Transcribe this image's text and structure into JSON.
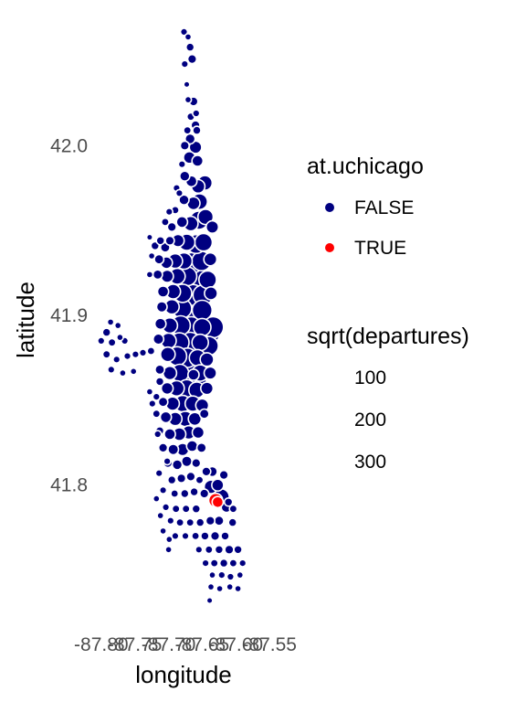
{
  "chart_data": {
    "type": "scatter",
    "title": "",
    "xlabel": "longitude",
    "ylabel": "latitude",
    "xlim": [
      -87.82,
      -87.53
    ],
    "ylim": [
      41.725,
      42.075
    ],
    "x_ticks": [
      -87.8,
      -87.75,
      -87.7,
      -87.65,
      -87.6,
      -87.55
    ],
    "x_tick_labels": [
      "-87.80",
      "-87.75",
      "-87.70",
      "-87.65",
      "-87.60",
      "-87.55"
    ],
    "y_ticks": [
      41.8,
      41.9,
      42.0
    ],
    "y_tick_labels": [
      "41.8",
      "41.9",
      "42.0"
    ],
    "grid": false,
    "legend_color": {
      "title": "at.uchicago",
      "entries": [
        {
          "label": "FALSE",
          "color": "#000080"
        },
        {
          "label": "TRUE",
          "color": "#ff0000"
        }
      ]
    },
    "legend_size": {
      "title": "sqrt(departures)",
      "entries": [
        {
          "label": "100",
          "value": 100
        },
        {
          "label": "200",
          "value": 200
        },
        {
          "label": "300",
          "value": 300
        }
      ]
    },
    "series": [
      {
        "label": "FALSE",
        "color": "#000080",
        "points": [
          [
            -87.677,
            42.067,
            60
          ],
          [
            -87.671,
            42.064,
            50
          ],
          [
            -87.668,
            42.058,
            80
          ],
          [
            -87.665,
            42.051,
            90
          ],
          [
            -87.676,
            42.048,
            60
          ],
          [
            -87.673,
            42.036,
            40
          ],
          [
            -87.663,
            42.026,
            90
          ],
          [
            -87.667,
            42.017,
            70
          ],
          [
            -87.66,
            42.012,
            90
          ],
          [
            -87.672,
            42.009,
            70
          ],
          [
            -87.668,
            42.004,
            110
          ],
          [
            -87.676,
            42.0,
            90
          ],
          [
            -87.669,
            41.993,
            140
          ],
          [
            -87.66,
            41.999,
            150
          ],
          [
            -87.657,
            41.991,
            130
          ],
          [
            -87.68,
            41.989,
            60
          ],
          [
            -87.676,
            41.982,
            110
          ],
          [
            -87.666,
            41.979,
            130
          ],
          [
            -87.656,
            41.976,
            170
          ],
          [
            -87.646,
            41.978,
            190
          ],
          [
            -87.688,
            41.975,
            60
          ],
          [
            -87.677,
            41.968,
            110
          ],
          [
            -87.663,
            41.966,
            160
          ],
          [
            -87.654,
            41.967,
            210
          ],
          [
            -87.69,
            41.962,
            70
          ],
          [
            -87.68,
            41.955,
            130
          ],
          [
            -87.667,
            41.954,
            190
          ],
          [
            -87.655,
            41.956,
            250
          ],
          [
            -87.645,
            41.958,
            200
          ],
          [
            -87.705,
            41.955,
            70
          ],
          [
            -87.695,
            41.952,
            90
          ],
          [
            -87.635,
            41.952,
            150
          ],
          [
            -87.698,
            41.944,
            90
          ],
          [
            -87.686,
            41.944,
            150
          ],
          [
            -87.673,
            41.943,
            220
          ],
          [
            -87.659,
            41.942,
            260
          ],
          [
            -87.648,
            41.943,
            240
          ],
          [
            -87.728,
            41.946,
            40
          ],
          [
            -87.72,
            41.941,
            80
          ],
          [
            -87.712,
            41.944,
            80
          ],
          [
            -87.705,
            41.94,
            100
          ],
          [
            -87.725,
            41.935,
            50
          ],
          [
            -87.714,
            41.933,
            100
          ],
          [
            -87.703,
            41.931,
            140
          ],
          [
            -87.69,
            41.932,
            190
          ],
          [
            -87.677,
            41.932,
            220
          ],
          [
            -87.664,
            41.931,
            290
          ],
          [
            -87.651,
            41.932,
            270
          ],
          [
            -87.638,
            41.933,
            160
          ],
          [
            -87.728,
            41.924,
            50
          ],
          [
            -87.716,
            41.924,
            100
          ],
          [
            -87.702,
            41.923,
            150
          ],
          [
            -87.687,
            41.923,
            210
          ],
          [
            -87.672,
            41.923,
            260
          ],
          [
            -87.657,
            41.922,
            320
          ],
          [
            -87.642,
            41.921,
            240
          ],
          [
            -87.708,
            41.914,
            130
          ],
          [
            -87.693,
            41.914,
            190
          ],
          [
            -87.679,
            41.913,
            250
          ],
          [
            -87.664,
            41.912,
            300
          ],
          [
            -87.649,
            41.912,
            280
          ],
          [
            -87.637,
            41.913,
            160
          ],
          [
            -87.71,
            41.905,
            120
          ],
          [
            -87.695,
            41.905,
            190
          ],
          [
            -87.68,
            41.904,
            270
          ],
          [
            -87.664,
            41.903,
            320
          ],
          [
            -87.65,
            41.903,
            280
          ],
          [
            -87.712,
            41.895,
            130
          ],
          [
            -87.698,
            41.894,
            200
          ],
          [
            -87.682,
            41.894,
            270
          ],
          [
            -87.666,
            41.893,
            300
          ],
          [
            -87.65,
            41.893,
            240
          ],
          [
            -87.634,
            41.893,
            300
          ],
          [
            -87.715,
            41.886,
            120
          ],
          [
            -87.7,
            41.885,
            200
          ],
          [
            -87.684,
            41.884,
            270
          ],
          [
            -87.668,
            41.884,
            290
          ],
          [
            -87.653,
            41.884,
            220
          ],
          [
            -87.64,
            41.882,
            260
          ],
          [
            -87.701,
            41.877,
            190
          ],
          [
            -87.687,
            41.876,
            260
          ],
          [
            -87.672,
            41.875,
            270
          ],
          [
            -87.657,
            41.875,
            220
          ],
          [
            -87.643,
            41.874,
            170
          ],
          [
            -87.713,
            41.868,
            100
          ],
          [
            -87.698,
            41.866,
            170
          ],
          [
            -87.683,
            41.866,
            240
          ],
          [
            -87.668,
            41.866,
            280
          ],
          [
            -87.653,
            41.866,
            220
          ],
          [
            -87.638,
            41.866,
            150
          ],
          [
            -87.702,
            41.857,
            140
          ],
          [
            -87.688,
            41.857,
            200
          ],
          [
            -87.673,
            41.857,
            240
          ],
          [
            -87.658,
            41.856,
            210
          ],
          [
            -87.643,
            41.857,
            150
          ],
          [
            -87.708,
            41.849,
            100
          ],
          [
            -87.694,
            41.848,
            170
          ],
          [
            -87.679,
            41.848,
            220
          ],
          [
            -87.664,
            41.848,
            200
          ],
          [
            -87.65,
            41.847,
            160
          ],
          [
            -87.718,
            41.842,
            70
          ],
          [
            -87.704,
            41.84,
            130
          ],
          [
            -87.69,
            41.839,
            170
          ],
          [
            -87.675,
            41.839,
            200
          ],
          [
            -87.661,
            41.839,
            160
          ],
          [
            -87.647,
            41.842,
            100
          ],
          [
            -87.713,
            41.832,
            80
          ],
          [
            -87.698,
            41.83,
            130
          ],
          [
            -87.684,
            41.83,
            160
          ],
          [
            -87.67,
            41.831,
            170
          ],
          [
            -87.656,
            41.831,
            140
          ],
          [
            -87.708,
            41.822,
            90
          ],
          [
            -87.693,
            41.821,
            120
          ],
          [
            -87.679,
            41.821,
            150
          ],
          [
            -87.665,
            41.823,
            130
          ],
          [
            -87.651,
            41.822,
            100
          ],
          [
            -87.701,
            41.813,
            90
          ],
          [
            -87.687,
            41.812,
            110
          ],
          [
            -87.673,
            41.814,
            120
          ],
          [
            -87.659,
            41.813,
            90
          ],
          [
            -87.644,
            41.808,
            90
          ],
          [
            -87.635,
            41.808,
            110
          ],
          [
            -87.714,
            41.807,
            60
          ],
          [
            -87.695,
            41.803,
            80
          ],
          [
            -87.681,
            41.804,
            90
          ],
          [
            -87.667,
            41.805,
            90
          ],
          [
            -87.654,
            41.803,
            70
          ],
          [
            -87.637,
            41.799,
            170
          ],
          [
            -87.627,
            41.8,
            140
          ],
          [
            -87.708,
            41.797,
            60
          ],
          [
            -87.691,
            41.795,
            70
          ],
          [
            -87.676,
            41.795,
            80
          ],
          [
            -87.662,
            41.796,
            80
          ],
          [
            -87.647,
            41.795,
            90
          ],
          [
            -87.622,
            41.793,
            220
          ],
          [
            -87.63,
            41.791,
            160
          ],
          [
            -87.704,
            41.787,
            60
          ],
          [
            -87.689,
            41.786,
            70
          ],
          [
            -87.674,
            41.786,
            70
          ],
          [
            -87.659,
            41.786,
            80
          ],
          [
            -87.614,
            41.787,
            120
          ],
          [
            -87.697,
            41.779,
            60
          ],
          [
            -87.683,
            41.778,
            70
          ],
          [
            -87.668,
            41.778,
            70
          ],
          [
            -87.653,
            41.778,
            80
          ],
          [
            -87.638,
            41.779,
            90
          ],
          [
            -87.625,
            41.779,
            100
          ],
          [
            -87.605,
            41.778,
            80
          ],
          [
            -87.69,
            41.77,
            60
          ],
          [
            -87.675,
            41.77,
            60
          ],
          [
            -87.66,
            41.77,
            70
          ],
          [
            -87.646,
            41.77,
            80
          ],
          [
            -87.631,
            41.77,
            90
          ],
          [
            -87.616,
            41.77,
            80
          ],
          [
            -87.7,
            41.762,
            50
          ],
          [
            -87.655,
            41.762,
            60
          ],
          [
            -87.64,
            41.762,
            70
          ],
          [
            -87.625,
            41.762,
            80
          ],
          [
            -87.61,
            41.762,
            90
          ],
          [
            -87.597,
            41.762,
            80
          ],
          [
            -87.645,
            41.754,
            60
          ],
          [
            -87.632,
            41.754,
            70
          ],
          [
            -87.618,
            41.754,
            80
          ],
          [
            -87.604,
            41.754,
            70
          ],
          [
            -87.59,
            41.754,
            60
          ],
          [
            -87.635,
            41.747,
            50
          ],
          [
            -87.621,
            41.747,
            60
          ],
          [
            -87.608,
            41.746,
            60
          ],
          [
            -87.594,
            41.747,
            50
          ],
          [
            -87.637,
            41.74,
            50
          ],
          [
            -87.624,
            41.739,
            50
          ],
          [
            -87.609,
            41.74,
            50
          ],
          [
            -87.597,
            41.739,
            50
          ],
          [
            -87.639,
            41.732,
            40
          ],
          [
            -87.786,
            41.896,
            50
          ],
          [
            -87.792,
            41.89,
            80
          ],
          [
            -87.8,
            41.885,
            60
          ],
          [
            -87.784,
            41.884,
            70
          ],
          [
            -87.772,
            41.887,
            50
          ],
          [
            -87.792,
            41.877,
            70
          ],
          [
            -87.777,
            41.874,
            60
          ],
          [
            -87.761,
            41.876,
            60
          ],
          [
            -87.749,
            41.877,
            60
          ],
          [
            -87.738,
            41.878,
            60
          ],
          [
            -87.726,
            41.879,
            70
          ],
          [
            -87.785,
            41.868,
            60
          ],
          [
            -87.768,
            41.866,
            50
          ],
          [
            -87.752,
            41.867,
            50
          ],
          [
            -87.775,
            41.894,
            50
          ],
          [
            -87.765,
            41.885,
            60
          ],
          [
            -87.713,
            41.861,
            80
          ],
          [
            -87.728,
            41.855,
            50
          ],
          [
            -87.724,
            41.848,
            60
          ],
          [
            -87.718,
            41.852,
            60
          ],
          [
            -87.699,
            41.961,
            60
          ],
          [
            -87.671,
            42.027,
            50
          ],
          [
            -87.659,
            42.019,
            60
          ],
          [
            -87.658,
            42.009,
            80
          ],
          [
            -87.684,
            41.972,
            60
          ],
          [
            -87.663,
            41.865,
            130
          ],
          [
            -87.618,
            41.806,
            90
          ],
          [
            -87.611,
            41.79,
            80
          ],
          [
            -87.604,
            41.786,
            70
          ],
          [
            -87.718,
            41.792,
            50
          ],
          [
            -87.712,
            41.782,
            50
          ],
          [
            -87.708,
            41.773,
            50
          ],
          [
            -87.699,
            41.768,
            50
          ],
          [
            -87.702,
            41.814,
            60
          ],
          [
            -87.716,
            41.83,
            60
          ],
          [
            -87.66,
            41.86,
            320
          ],
          [
            -87.64,
            41.89,
            330
          ]
        ]
      },
      {
        "label": "TRUE",
        "color": "#ff0000",
        "points": [
          [
            -87.63,
            41.791,
            180
          ],
          [
            -87.627,
            41.79,
            130
          ]
        ]
      }
    ]
  }
}
